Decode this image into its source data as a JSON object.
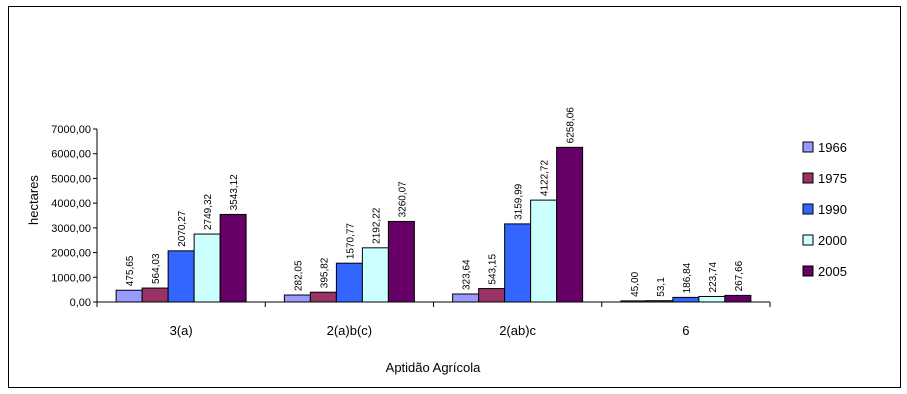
{
  "chart_data": {
    "type": "bar",
    "title": "",
    "xlabel": "Aptidão Agrícola",
    "ylabel": "hectares",
    "ylim": [
      0,
      7000
    ],
    "yticks": [
      0,
      1000,
      2000,
      3000,
      4000,
      5000,
      6000,
      7000
    ],
    "ytick_labels": [
      "0,00",
      "1000,00",
      "2000,00",
      "3000,00",
      "4000,00",
      "5000,00",
      "6000,00",
      "7000,00"
    ],
    "categories": [
      "3(a)",
      "2(a)b(c)",
      "2(ab)c",
      "6"
    ],
    "grid": false,
    "legend_position": "right",
    "series": [
      {
        "name": "1966",
        "color": "#9999ff",
        "values": [
          475.65,
          282.05,
          323.64,
          45.0
        ],
        "labels": [
          "475,65",
          "282,05",
          "323,64",
          "45,00"
        ]
      },
      {
        "name": "1975",
        "color": "#993366",
        "values": [
          564.03,
          395.82,
          543.15,
          53.1
        ],
        "labels": [
          "564,03",
          "395,82",
          "543,15",
          "53,1"
        ]
      },
      {
        "name": "1990",
        "color": "#3366ff",
        "values": [
          2070.27,
          1570.77,
          3159.99,
          186.84
        ],
        "labels": [
          "2070,27",
          "1570,77",
          "3159,99",
          "186,84"
        ]
      },
      {
        "name": "2000",
        "color": "#ccffff",
        "values": [
          2749.32,
          2192.22,
          4122.72,
          223.74
        ],
        "labels": [
          "2749,32",
          "2192,22",
          "4122,72",
          "223,74"
        ]
      },
      {
        "name": "2005",
        "color": "#660066",
        "values": [
          3543.12,
          3260.07,
          6258.06,
          267.66
        ],
        "labels": [
          "3543,12",
          "3260,07",
          "6258,06",
          "267,66"
        ]
      }
    ]
  }
}
